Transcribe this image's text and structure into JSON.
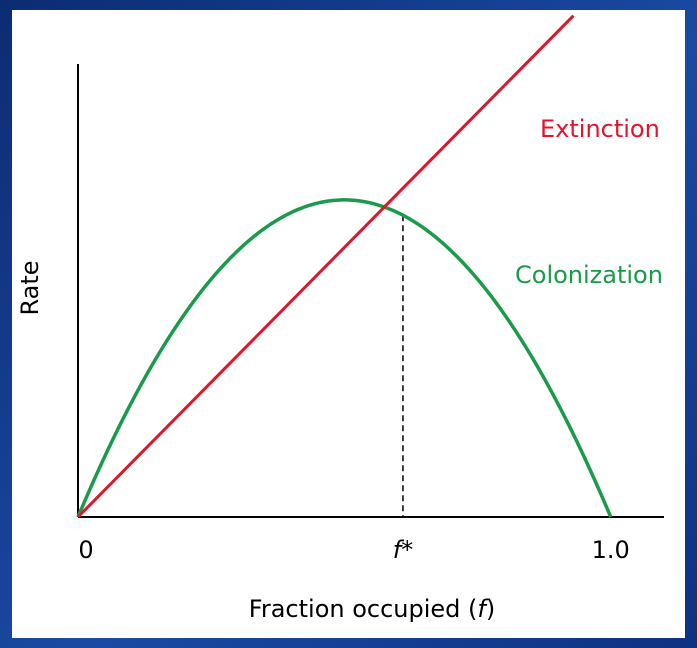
{
  "chart_data": {
    "type": "line",
    "xlabel_prefix": "Fraction occupied (",
    "xlabel_var": "f",
    "xlabel_suffix": ")",
    "ylabel": "Rate",
    "x_ticks": [
      {
        "value": 0,
        "label": "0"
      },
      {
        "value": 1.0,
        "label": "1.0"
      }
    ],
    "equilibrium": {
      "x": 0.61,
      "label_var": "f",
      "label_suffix": "*"
    },
    "xlim": [
      0,
      1.1
    ],
    "ylim": [
      0,
      1.0
    ],
    "series": [
      {
        "name": "Extinction",
        "kind": "linear",
        "slope": 1.19,
        "color": "#e0142a"
      },
      {
        "name": "Colonization",
        "kind": "parabola",
        "scale": 2.8,
        "color": "#1a9a4a"
      }
    ]
  },
  "colors": {
    "frame": "#123a8a",
    "axis": "#000000",
    "extinction": "#e0142a",
    "colonization": "#1a9a4a"
  }
}
